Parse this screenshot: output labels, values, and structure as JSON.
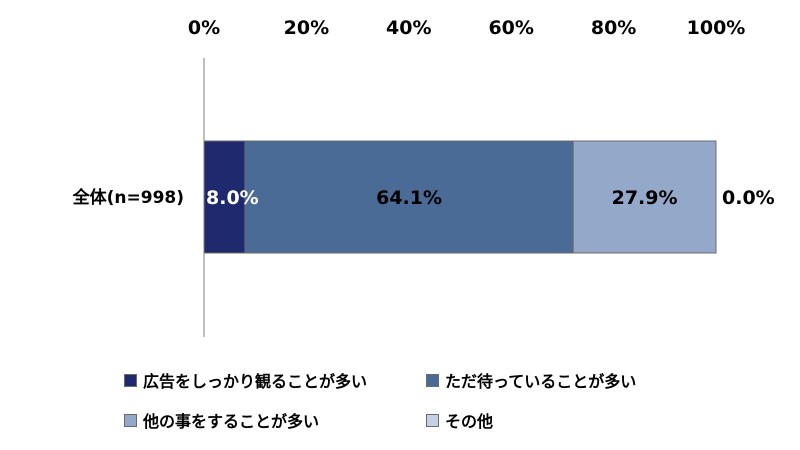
{
  "chart_data": {
    "type": "bar",
    "orientation": "horizontal",
    "stacked": true,
    "categories": [
      "全体(n=998)"
    ],
    "xlim": [
      0,
      100
    ],
    "x_ticks": [
      "0%",
      "20%",
      "40%",
      "60%",
      "80%",
      "100%"
    ],
    "series": [
      {
        "name": "広告をしっかり観ることが多い",
        "values": [
          8.0
        ],
        "label": "8.0%",
        "color": "#1f2a6e",
        "label_color": "#ffffff"
      },
      {
        "name": "ただ待っていることが多い",
        "values": [
          64.1
        ],
        "label": "64.1%",
        "color": "#4a6b96",
        "label_color": "#000000"
      },
      {
        "name": "他の事をすることが多い",
        "values": [
          27.9
        ],
        "label": "27.9%",
        "color": "#94a9c9",
        "label_color": "#000000"
      },
      {
        "name": "その他",
        "values": [
          0.0
        ],
        "label": "0.0%",
        "color": "#c4d0e3",
        "label_color": "#000000"
      }
    ],
    "legend_position": "bottom",
    "grid": false
  }
}
